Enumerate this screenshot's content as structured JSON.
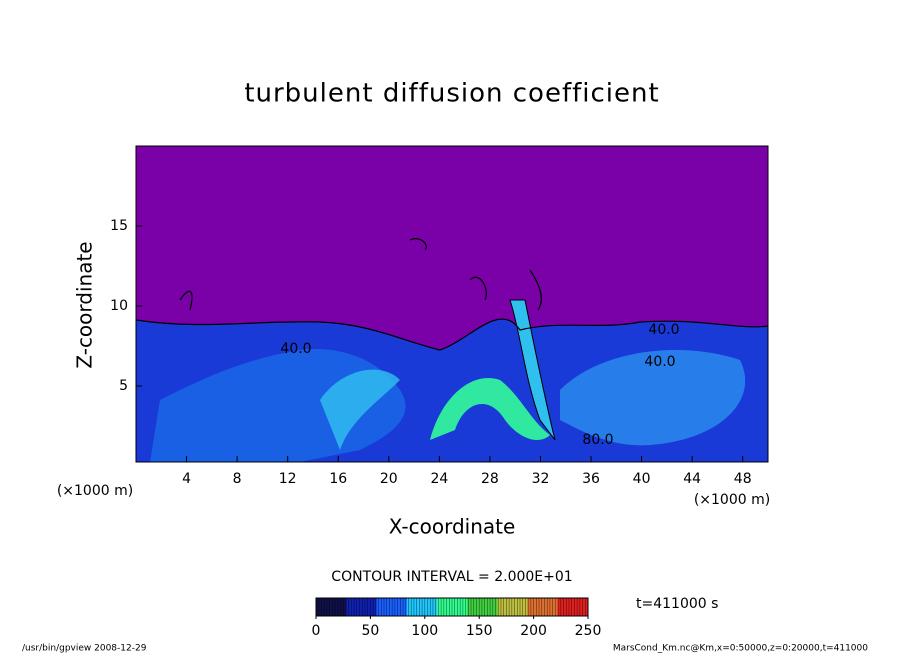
{
  "chart_data": {
    "type": "contour",
    "title": "turbulent diffusion coefficient",
    "x_label": "X-coordinate",
    "y_label": "Z-coordinate",
    "x_unit": "(×1000 m)",
    "y_unit": "(×1000 m)",
    "xlim": [
      0,
      50
    ],
    "xticks": [
      4,
      8,
      12,
      16,
      20,
      24,
      28,
      32,
      36,
      40,
      44,
      48
    ],
    "ylim": [
      0.25,
      20
    ],
    "yticks": [
      5,
      10,
      15
    ],
    "contour_interval": "CONTOUR INTERVAL = 2.000E+01",
    "annotations": [
      "40.0",
      "40.0",
      "40.0",
      "80.0"
    ],
    "time_label": "t=411000 s",
    "colorbar": {
      "lim": [
        0,
        250
      ],
      "ticks": [
        0,
        50,
        100,
        150,
        200,
        250
      ],
      "colors": [
        "#10104a",
        "#1020b0",
        "#1a60ff",
        "#20c8ff",
        "#30ff90",
        "#40d040",
        "#c0c040",
        "#e07030",
        "#e02020"
      ]
    },
    "footer_left": "/usr/bin/gpview  2008-12-29",
    "footer_right": "MarsCond_Km.nc@Km,x=0:50000,z=0:20000,t=411000"
  }
}
